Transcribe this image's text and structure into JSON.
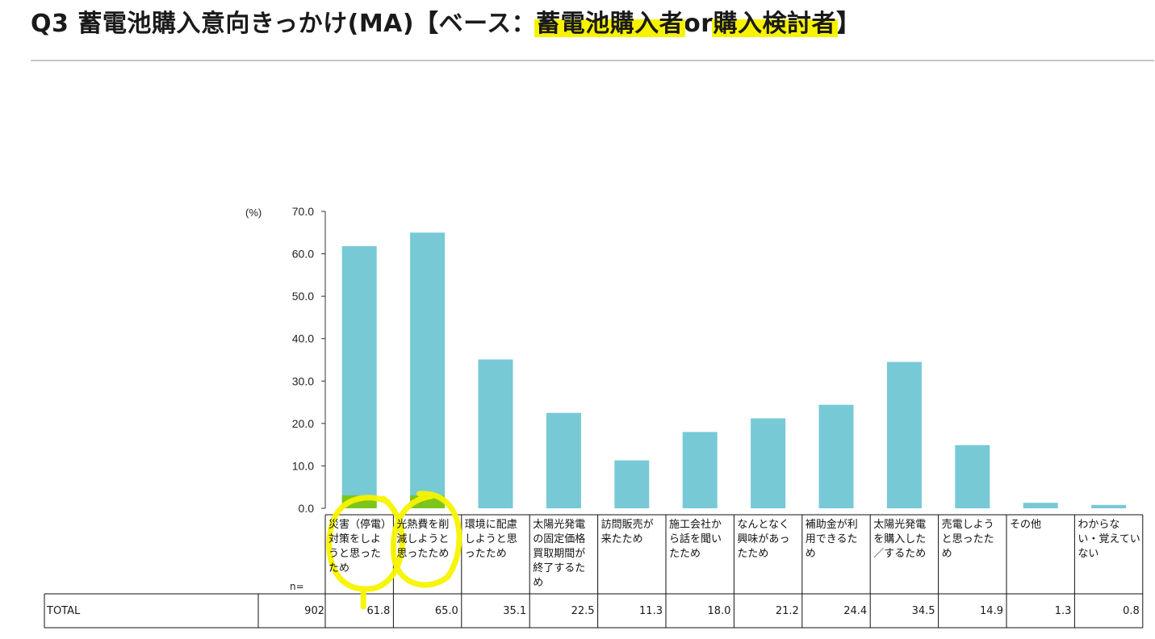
{
  "title": {
    "prefix": "Q3 蓄電池購入意向きっかけ(MA)【ベース：",
    "hl1": "蓄電池購入者",
    "mid": "or",
    "hl2": "購入検討者",
    "suffix": "】"
  },
  "chart_data": {
    "type": "bar",
    "unit_label": "(%)",
    "ylim": [
      0,
      70
    ],
    "yticks": [
      "70.0",
      "60.0",
      "50.0",
      "40.0",
      "30.0",
      "20.0",
      "10.0",
      "0.0"
    ],
    "categories": [
      "災害（停電）対策をしようと思ったため",
      "光熱費を削減しようと思ったため",
      "環境に配慮しようと思ったため",
      "太陽光発電の固定価格買取期間が終了するため",
      "訪問販売が来たため",
      "施工会社から話を聞いたため",
      "なんとなく興味があったため",
      "補助金が利用できるため",
      "太陽光発電を購入した／するため",
      "売電しようと思ったため",
      "その他",
      "わからない・覚えていない"
    ],
    "values": [
      61.8,
      65.0,
      35.1,
      22.5,
      11.3,
      18.0,
      21.2,
      24.4,
      34.5,
      14.9,
      1.3,
      0.8
    ],
    "value_labels": [
      "61.8",
      "65.0",
      "35.1",
      "22.5",
      "11.3",
      "18.0",
      "21.2",
      "24.4",
      "34.5",
      "14.9",
      "1.3",
      "0.8"
    ],
    "bar_color": "#77c9d6"
  },
  "table": {
    "n_label": "n=",
    "row_label": "TOTAL",
    "n_value": "902"
  },
  "colors": {
    "highlight": "#f7f300",
    "highlight_overlap": "#7cc51c"
  }
}
